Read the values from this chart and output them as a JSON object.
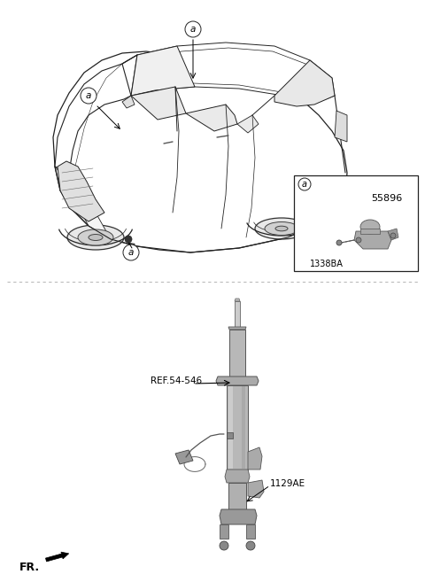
{
  "bg_color": "#ffffff",
  "fig_width": 4.8,
  "fig_height": 6.57,
  "dpi": 100,
  "part_label_a": "a",
  "part_number_55896": "55896",
  "part_number_1129AE": "1129AE",
  "ref_label": "REF.54-546",
  "fr_label": "FR.",
  "label_1338BA": "1338BA",
  "lc": "#222222",
  "gc": "#aaaaaa",
  "strut_color": "#bbbbbb",
  "strut_dark": "#888888",
  "divider_color": "#aaaaaa"
}
